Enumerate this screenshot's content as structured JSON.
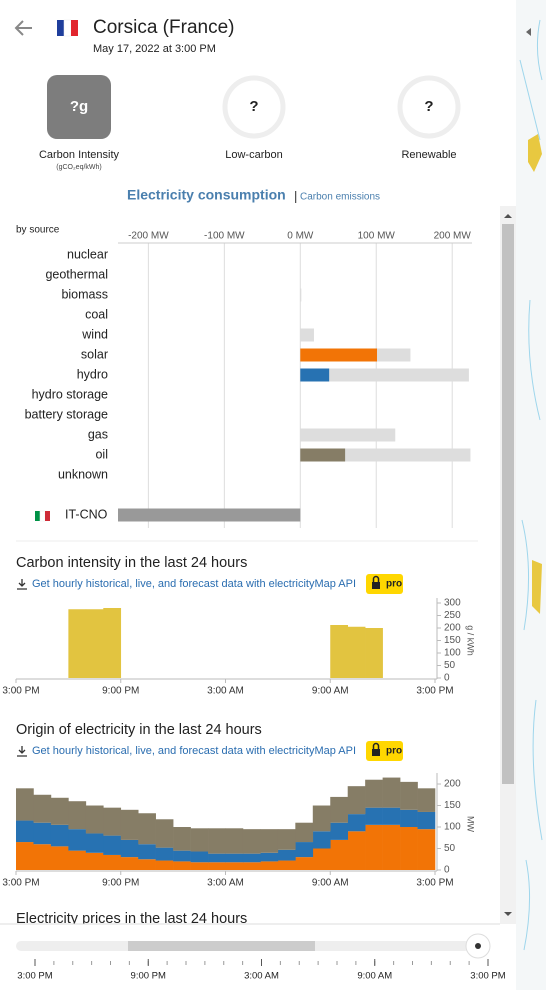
{
  "header": {
    "title": "Corsica (France)",
    "date": "May 17, 2022 at 3:00 PM"
  },
  "summary": [
    {
      "value": "?g",
      "label": "Carbon Intensity",
      "unit": "(gCO₂eq/kWh)"
    },
    {
      "value": "?",
      "label": "Low-carbon"
    },
    {
      "value": "?",
      "label": "Renewable"
    }
  ],
  "tabs": {
    "active": "Electricity consumption",
    "separator": "|",
    "other": "Carbon emissions"
  },
  "consumption": {
    "type": "bar",
    "subtitle": "by source",
    "xlim": [
      -240,
      230
    ],
    "xticks": [
      {
        "value": -200,
        "label": "-200 MW"
      },
      {
        "value": -100,
        "label": "-100 MW"
      },
      {
        "value": 0,
        "label": "0 MW"
      },
      {
        "value": 100,
        "label": "100 MW"
      },
      {
        "value": 200,
        "label": "200 MW"
      }
    ],
    "capacity_color": "#dddddd",
    "sources": [
      {
        "name": "nuclear",
        "production": null,
        "capacity": null,
        "color": "#ae0000"
      },
      {
        "name": "geothermal",
        "production": null,
        "capacity": null,
        "color": "#a5292a"
      },
      {
        "name": "biomass",
        "production": null,
        "capacity": 1,
        "color": "#166a57"
      },
      {
        "name": "coal",
        "production": null,
        "capacity": null,
        "color": "#000000"
      },
      {
        "name": "wind",
        "production": null,
        "capacity": 18,
        "color": "#74cdb9"
      },
      {
        "name": "solar",
        "production": 101,
        "capacity": 145,
        "color": "#f27406"
      },
      {
        "name": "hydro",
        "production": 38,
        "capacity": 222,
        "color": "#2772b2"
      },
      {
        "name": "hydro storage",
        "production": null,
        "capacity": null,
        "color": "#0b2e6b"
      },
      {
        "name": "battery storage",
        "production": null,
        "capacity": null,
        "color": "#b76bcf"
      },
      {
        "name": "gas",
        "production": null,
        "capacity": 125,
        "color": "#bb2f51"
      },
      {
        "name": "oil",
        "production": 59,
        "capacity": 224,
        "color": "#867d66"
      },
      {
        "name": "unknown",
        "production": null,
        "capacity": null,
        "color": "#acacac"
      }
    ],
    "exchanges": [
      {
        "name": "IT-CNO",
        "value": -240,
        "color": "#999999"
      }
    ]
  },
  "carbon_chart": {
    "type": "bar",
    "title": "Carbon intensity in the last 24 hours",
    "link": "Get hourly historical, live, and forecast data with electricityMap API",
    "badge": "pro",
    "y_label": "g / kWh",
    "color": "#e2c440",
    "xlim": [
      0,
      24
    ],
    "xticks": [
      {
        "value": 0,
        "label": "3:00 PM"
      },
      {
        "value": 6,
        "label": "9:00 PM"
      },
      {
        "value": 12,
        "label": "3:00 AM"
      },
      {
        "value": 18,
        "label": "9:00 AM"
      },
      {
        "value": 24,
        "label": "3:00 PM"
      }
    ],
    "ylim": [
      0,
      300
    ],
    "yticks": [
      0,
      50,
      100,
      150,
      200,
      250,
      300
    ],
    "values": [
      null,
      null,
      null,
      275,
      275,
      280,
      null,
      null,
      null,
      null,
      null,
      null,
      null,
      null,
      null,
      null,
      null,
      null,
      212,
      205,
      200,
      null,
      null,
      null
    ]
  },
  "origin_chart": {
    "type": "area",
    "title": "Origin of electricity in the last 24 hours",
    "link": "Get hourly historical, live, and forecast data with electricityMap API",
    "badge": "pro",
    "y_label": "MW",
    "xlim": [
      0,
      24
    ],
    "xticks": [
      {
        "value": 0,
        "label": "3:00 PM"
      },
      {
        "value": 6,
        "label": "9:00 PM"
      },
      {
        "value": 12,
        "label": "3:00 AM"
      },
      {
        "value": 18,
        "label": "9:00 AM"
      },
      {
        "value": 24,
        "label": "3:00 PM"
      }
    ],
    "ylim": [
      0,
      214
    ],
    "yticks": [
      0,
      50,
      100,
      150,
      200
    ],
    "series": [
      {
        "color": "#f27406",
        "values": [
          65,
          60,
          55,
          45,
          40,
          35,
          30,
          25,
          22,
          20,
          18,
          18,
          18,
          18,
          20,
          22,
          30,
          50,
          70,
          90,
          105,
          105,
          100,
          95
        ]
      },
      {
        "color": "#2772b2",
        "values": [
          50,
          50,
          50,
          50,
          45,
          45,
          40,
          35,
          30,
          25,
          25,
          20,
          20,
          20,
          20,
          25,
          35,
          40,
          40,
          40,
          40,
          40,
          40,
          40
        ]
      },
      {
        "color": "#867d66",
        "values": [
          75,
          65,
          63,
          65,
          65,
          65,
          70,
          72,
          66,
          55,
          54,
          59,
          59,
          57,
          55,
          48,
          45,
          60,
          60,
          65,
          65,
          70,
          65,
          55
        ]
      }
    ]
  },
  "prices_title": "Electricity prices in the last 24 hours",
  "timeline": {
    "xlim": [
      0,
      24
    ],
    "xticks": [
      {
        "value": 0,
        "label": "3:00 PM"
      },
      {
        "value": 6,
        "label": "9:00 PM"
      },
      {
        "value": 12,
        "label": "3:00 AM"
      },
      {
        "value": 18,
        "label": "9:00 AM"
      },
      {
        "value": 24,
        "label": "3:00 PM"
      }
    ]
  }
}
